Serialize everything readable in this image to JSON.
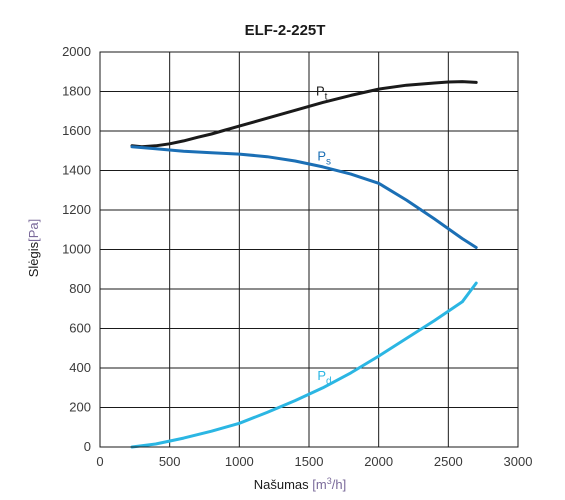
{
  "chart_data": {
    "type": "line",
    "title": "ELF-2-225T",
    "xlabel": "Našumas",
    "xunit": "m3/h",
    "ylabel": "Slėgis",
    "yunit": "Pa",
    "xlim": [
      0,
      3000
    ],
    "ylim": [
      0,
      2000
    ],
    "xticks": [
      0,
      500,
      1000,
      1500,
      2000,
      2500,
      3000
    ],
    "yticks": [
      0,
      200,
      400,
      600,
      800,
      1000,
      1200,
      1400,
      1600,
      1800,
      2000
    ],
    "grid": true,
    "series": [
      {
        "name": "Pt",
        "base": "P",
        "sub": "t",
        "color": "#1a1a1a",
        "label_at": [
          1550,
          1780
        ],
        "points": [
          [
            230,
            1525
          ],
          [
            300,
            1520
          ],
          [
            400,
            1525
          ],
          [
            500,
            1535
          ],
          [
            600,
            1550
          ],
          [
            700,
            1568
          ],
          [
            800,
            1585
          ],
          [
            900,
            1605
          ],
          [
            1000,
            1625
          ],
          [
            1200,
            1665
          ],
          [
            1400,
            1705
          ],
          [
            1600,
            1745
          ],
          [
            1800,
            1780
          ],
          [
            2000,
            1812
          ],
          [
            2200,
            1832
          ],
          [
            2400,
            1843
          ],
          [
            2500,
            1848
          ],
          [
            2600,
            1850
          ],
          [
            2700,
            1846
          ]
        ]
      },
      {
        "name": "Ps",
        "base": "P",
        "sub": "s",
        "color": "#1b6fb5",
        "label_at": [
          1560,
          1450
        ],
        "points": [
          [
            230,
            1520
          ],
          [
            400,
            1510
          ],
          [
            600,
            1497
          ],
          [
            800,
            1490
          ],
          [
            1000,
            1483
          ],
          [
            1200,
            1470
          ],
          [
            1400,
            1448
          ],
          [
            1600,
            1418
          ],
          [
            1800,
            1382
          ],
          [
            2000,
            1335
          ],
          [
            2200,
            1250
          ],
          [
            2400,
            1155
          ],
          [
            2600,
            1055
          ],
          [
            2700,
            1010
          ]
        ]
      },
      {
        "name": "Pd",
        "base": "P",
        "sub": "d",
        "color": "#2bb6e3",
        "label_at": [
          1560,
          340
        ],
        "points": [
          [
            230,
            0
          ],
          [
            400,
            15
          ],
          [
            600,
            45
          ],
          [
            800,
            80
          ],
          [
            1000,
            120
          ],
          [
            1200,
            175
          ],
          [
            1400,
            235
          ],
          [
            1600,
            300
          ],
          [
            1800,
            375
          ],
          [
            2000,
            460
          ],
          [
            2200,
            550
          ],
          [
            2400,
            640
          ],
          [
            2600,
            735
          ],
          [
            2700,
            830
          ]
        ]
      }
    ]
  }
}
